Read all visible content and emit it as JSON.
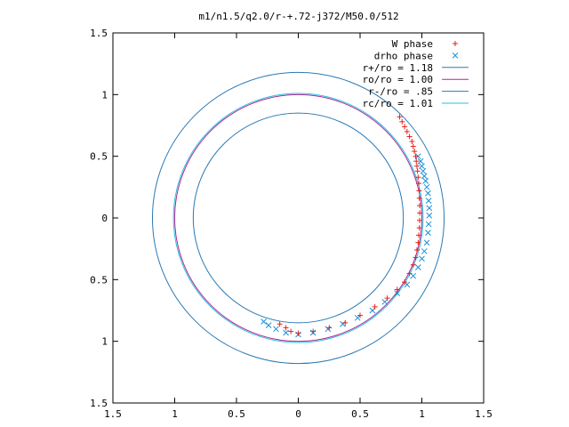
{
  "chart_data": {
    "type": "scatter",
    "title": "m1/n1.5/q2.0/r-+.72-j372/M50.0/512",
    "xlim": [
      -1.5,
      1.5
    ],
    "ylim": [
      -1.5,
      1.5
    ],
    "x_ticks": [
      -1.5,
      -1,
      -0.5,
      0,
      0.5,
      1,
      1.5
    ],
    "y_ticks": [
      -1.5,
      -1,
      -0.5,
      0,
      0.5,
      1,
      1.5
    ],
    "x_tick_labels": [
      "1.5",
      "1",
      "0.5",
      "0",
      "0.5",
      "1",
      "1.5"
    ],
    "y_tick_labels": [
      "1.5",
      "1",
      "0.5",
      "0",
      "0.5",
      "1",
      "1.5"
    ],
    "grid": false,
    "legend_position": "top-right",
    "circles": [
      {
        "name": "r+/ro = 1.18",
        "radius": 1.18,
        "color": "#2a7ab5"
      },
      {
        "name": "ro/ro = 1.00",
        "radius": 1.0,
        "color": "#b0248f"
      },
      {
        "name": "r-/ro = .85",
        "radius": 0.85,
        "color": "#2a7ab5"
      },
      {
        "name": "rc/ro = 1.01",
        "radius": 1.01,
        "color": "#25c0e8"
      }
    ],
    "series": [
      {
        "name": "W phase",
        "marker": "plus",
        "color": "#e8201a",
        "points": [
          [
            0.82,
            0.82
          ],
          [
            0.84,
            0.78
          ],
          [
            0.86,
            0.74
          ],
          [
            0.88,
            0.7
          ],
          [
            0.9,
            0.66
          ],
          [
            0.92,
            0.62
          ],
          [
            0.93,
            0.58
          ],
          [
            0.94,
            0.54
          ],
          [
            0.95,
            0.5
          ],
          [
            0.955,
            0.46
          ],
          [
            0.96,
            0.42
          ],
          [
            0.965,
            0.38
          ],
          [
            0.97,
            0.33
          ],
          [
            0.975,
            0.28
          ],
          [
            0.978,
            0.22
          ],
          [
            0.98,
            0.16
          ],
          [
            0.982,
            0.1
          ],
          [
            0.983,
            0.04
          ],
          [
            0.982,
            -0.02
          ],
          [
            0.98,
            -0.08
          ],
          [
            0.975,
            -0.14
          ],
          [
            0.97,
            -0.2
          ],
          [
            0.96,
            -0.26
          ],
          [
            0.95,
            -0.32
          ],
          [
            0.93,
            -0.38
          ],
          [
            0.9,
            -0.45
          ],
          [
            0.86,
            -0.52
          ],
          [
            0.8,
            -0.58
          ],
          [
            0.72,
            -0.65
          ],
          [
            0.62,
            -0.72
          ],
          [
            0.5,
            -0.79
          ],
          [
            0.38,
            -0.85
          ],
          [
            0.25,
            -0.89
          ],
          [
            0.12,
            -0.92
          ],
          [
            0.0,
            -0.935
          ],
          [
            -0.06,
            -0.92
          ],
          [
            -0.1,
            -0.89
          ],
          [
            -0.15,
            -0.86
          ]
        ]
      },
      {
        "name": "drho phase",
        "marker": "cross",
        "color": "#1a8fd8",
        "points": [
          [
            0.97,
            0.5
          ],
          [
            0.99,
            0.46
          ],
          [
            1.0,
            0.42
          ],
          [
            1.01,
            0.38
          ],
          [
            1.02,
            0.34
          ],
          [
            1.03,
            0.3
          ],
          [
            1.04,
            0.25
          ],
          [
            1.05,
            0.2
          ],
          [
            1.055,
            0.14
          ],
          [
            1.06,
            0.08
          ],
          [
            1.06,
            0.02
          ],
          [
            1.055,
            -0.05
          ],
          [
            1.05,
            -0.12
          ],
          [
            1.04,
            -0.2
          ],
          [
            1.02,
            -0.27
          ],
          [
            1.0,
            -0.33
          ],
          [
            0.97,
            -0.4
          ],
          [
            0.93,
            -0.47
          ],
          [
            0.88,
            -0.54
          ],
          [
            0.8,
            -0.61
          ],
          [
            0.7,
            -0.68
          ],
          [
            0.6,
            -0.75
          ],
          [
            0.48,
            -0.81
          ],
          [
            0.36,
            -0.86
          ],
          [
            0.24,
            -0.9
          ],
          [
            0.12,
            -0.93
          ],
          [
            0.0,
            -0.945
          ],
          [
            -0.1,
            -0.93
          ],
          [
            -0.18,
            -0.9
          ],
          [
            -0.24,
            -0.87
          ],
          [
            -0.28,
            -0.84
          ]
        ]
      }
    ]
  }
}
